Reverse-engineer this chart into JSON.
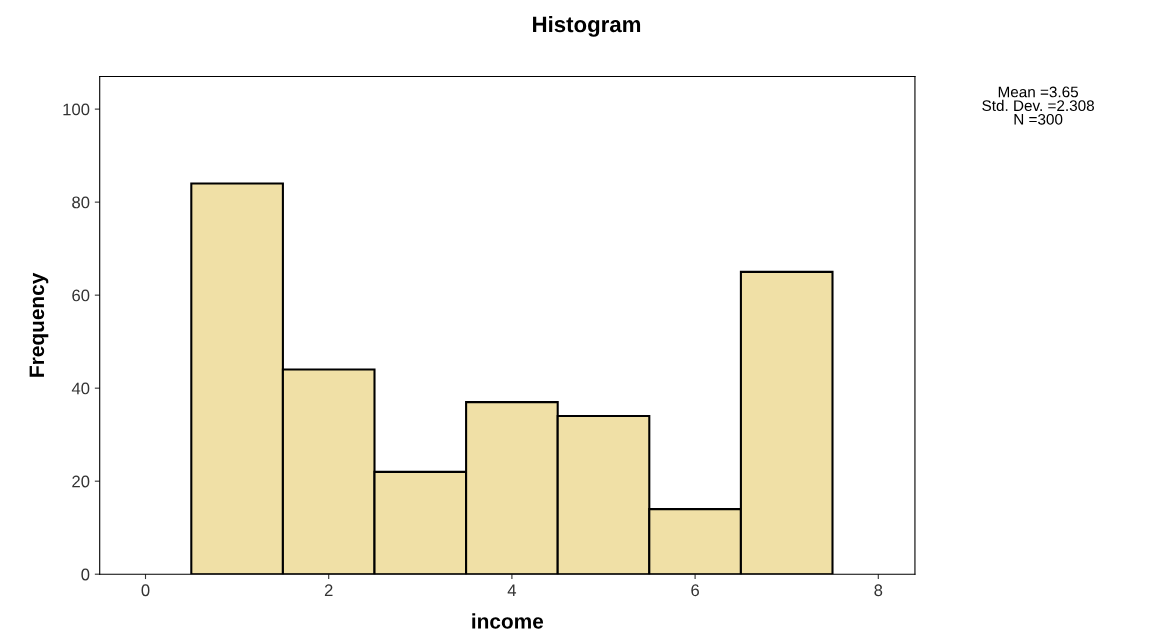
{
  "chart_data": {
    "type": "histogram",
    "title": "Histogram",
    "xlabel": "income",
    "ylabel": "Frequency",
    "bins": [
      0.5,
      1.5,
      2.5,
      3.5,
      4.5,
      5.5,
      6.5,
      7.5
    ],
    "values": [
      84,
      44,
      22,
      37,
      34,
      14,
      65
    ],
    "color": "#f0e0a6",
    "xlim": [
      -0.5,
      8.4
    ],
    "xticks": [
      0,
      2,
      4,
      6,
      8
    ],
    "ylim": [
      0,
      107
    ],
    "yticks": [
      0,
      20,
      40,
      60,
      80,
      100
    ],
    "grid": false,
    "legend": false,
    "annotations": [
      "Mean =3.65\nStd. Dev. =2.308\nN =300"
    ]
  }
}
